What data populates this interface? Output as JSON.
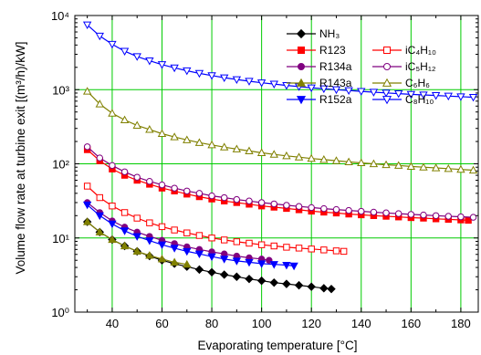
{
  "chart_data": {
    "type": "line",
    "xlabel": "Evaporating temperature [°C]",
    "ylabel": "Volume flow rate at turbine exit [(m³/h)/kW]",
    "yscale": "log",
    "xlim": [
      25,
      187
    ],
    "ylim": [
      1,
      10000
    ],
    "x_ticks": [
      40,
      60,
      80,
      100,
      120,
      140,
      160,
      180
    ],
    "x_tick_labels": [
      "40",
      "60",
      "80",
      "100",
      "120",
      "140",
      "160",
      "180"
    ],
    "y_ticks": [
      1,
      10,
      100,
      1000,
      10000
    ],
    "y_tick_labels": [
      "10⁰",
      "10¹",
      "10²",
      "10³",
      "10⁴"
    ],
    "grid": true,
    "legend_position": "top-right",
    "series": [
      {
        "name": "NH₃",
        "color": "#000000",
        "marker": "diamond",
        "filled": true,
        "x": [
          30,
          35,
          40,
          45,
          50,
          55,
          60,
          65,
          70,
          75,
          80,
          85,
          90,
          95,
          100,
          105,
          110,
          115,
          120,
          125,
          128
        ],
        "y": [
          16.5,
          12,
          9.5,
          7.8,
          6.6,
          5.7,
          5.0,
          4.5,
          4.1,
          3.75,
          3.45,
          3.2,
          3.0,
          2.8,
          2.65,
          2.5,
          2.4,
          2.3,
          2.2,
          2.1,
          2.05
        ]
      },
      {
        "name": "R123",
        "color": "#ff0000",
        "marker": "square",
        "filled": true,
        "x": [
          30,
          35,
          40,
          45,
          50,
          55,
          60,
          65,
          70,
          75,
          80,
          85,
          90,
          95,
          100,
          105,
          110,
          115,
          120,
          125,
          130,
          135,
          140,
          145,
          150,
          155,
          160,
          165,
          170,
          175,
          180,
          183
        ],
        "y": [
          155,
          110,
          85,
          70,
          60,
          53,
          47,
          43,
          39,
          36,
          33.5,
          31.5,
          30,
          28.5,
          27,
          26,
          25,
          24,
          23,
          22.3,
          21.7,
          21,
          20.5,
          20,
          19.6,
          19.2,
          18.8,
          18.5,
          18.1,
          17.8,
          17.5,
          17.3
        ]
      },
      {
        "name": "R134a",
        "color": "#800080",
        "marker": "circle",
        "filled": true,
        "x": [
          30,
          35,
          40,
          45,
          50,
          55,
          60,
          65,
          70,
          75,
          80,
          85,
          90,
          95,
          100,
          103
        ],
        "y": [
          30,
          22,
          17,
          14,
          12,
          10.5,
          9.3,
          8.4,
          7.6,
          7.0,
          6.5,
          6.1,
          5.7,
          5.4,
          5.2,
          5.0
        ]
      },
      {
        "name": "R143a",
        "color": "#808000",
        "marker": "triangle-up",
        "filled": true,
        "x": [
          30,
          35,
          40,
          45,
          50,
          55,
          60,
          65,
          70
        ],
        "y": [
          16.5,
          12,
          9.5,
          7.8,
          6.6,
          5.8,
          5.2,
          4.7,
          4.4
        ]
      },
      {
        "name": "R152a",
        "color": "#0000ff",
        "marker": "triangle-down",
        "filled": true,
        "x": [
          30,
          35,
          40,
          45,
          50,
          55,
          60,
          65,
          70,
          75,
          80,
          85,
          90,
          95,
          100,
          105,
          110,
          113
        ],
        "y": [
          28,
          20,
          15.5,
          12.5,
          10.5,
          9.2,
          8.1,
          7.3,
          6.6,
          6.1,
          5.6,
          5.2,
          4.9,
          4.7,
          4.5,
          4.4,
          4.3,
          4.2
        ]
      },
      {
        "name": "iC₄H₁₀",
        "color": "#ff0000",
        "marker": "square",
        "filled": false,
        "x": [
          30,
          35,
          40,
          45,
          50,
          55,
          60,
          65,
          70,
          75,
          80,
          85,
          90,
          95,
          100,
          105,
          110,
          115,
          120,
          125,
          130,
          133
        ],
        "y": [
          50,
          35,
          27,
          22,
          18.5,
          16,
          14.2,
          12.8,
          11.7,
          10.8,
          10,
          9.4,
          8.9,
          8.5,
          8.1,
          7.8,
          7.5,
          7.3,
          7.1,
          6.9,
          6.7,
          6.6
        ]
      },
      {
        "name": "iC₅H₁₂",
        "color": "#800080",
        "marker": "circle",
        "filled": false,
        "x": [
          30,
          35,
          40,
          45,
          50,
          55,
          60,
          65,
          70,
          75,
          80,
          85,
          90,
          95,
          100,
          105,
          110,
          115,
          120,
          125,
          130,
          135,
          140,
          145,
          150,
          155,
          160,
          165,
          170,
          175,
          180,
          185
        ],
        "y": [
          170,
          120,
          95,
          78,
          66,
          58,
          52,
          47,
          43,
          40,
          37,
          35,
          33,
          31.5,
          30,
          28.8,
          27.6,
          26.6,
          25.7,
          24.9,
          24.2,
          23.5,
          22.9,
          22.3,
          21.8,
          21.3,
          20.8,
          20.4,
          20,
          19.6,
          19.3,
          19
        ]
      },
      {
        "name": "C₆H₆",
        "color": "#808000",
        "marker": "triangle-up",
        "filled": false,
        "x": [
          30,
          35,
          40,
          45,
          50,
          55,
          60,
          65,
          70,
          75,
          80,
          85,
          90,
          95,
          100,
          105,
          110,
          115,
          120,
          125,
          130,
          135,
          140,
          145,
          150,
          155,
          160,
          165,
          170,
          175,
          180,
          185
        ],
        "y": [
          950,
          640,
          480,
          390,
          330,
          290,
          255,
          230,
          210,
          193,
          180,
          168,
          158,
          149,
          141,
          134,
          128,
          123,
          118,
          114,
          110,
          106,
          103,
          100,
          97,
          95,
          92,
          90,
          88,
          86,
          84,
          82
        ]
      },
      {
        "name": "C₈H₁₀",
        "color": "#0000ff",
        "marker": "triangle-down",
        "filled": false,
        "x": [
          30,
          35,
          40,
          45,
          50,
          55,
          60,
          65,
          70,
          75,
          80,
          85,
          90,
          95,
          100,
          105,
          110,
          115,
          120,
          125,
          130,
          135,
          140,
          145,
          150,
          155,
          160,
          165,
          170,
          175,
          180,
          185
        ],
        "y": [
          7500,
          5300,
          4100,
          3300,
          2800,
          2450,
          2180,
          1970,
          1800,
          1660,
          1550,
          1450,
          1370,
          1300,
          1240,
          1190,
          1140,
          1100,
          1060,
          1030,
          1000,
          975,
          950,
          925,
          905,
          885,
          865,
          850,
          835,
          820,
          805,
          790
        ]
      }
    ]
  }
}
